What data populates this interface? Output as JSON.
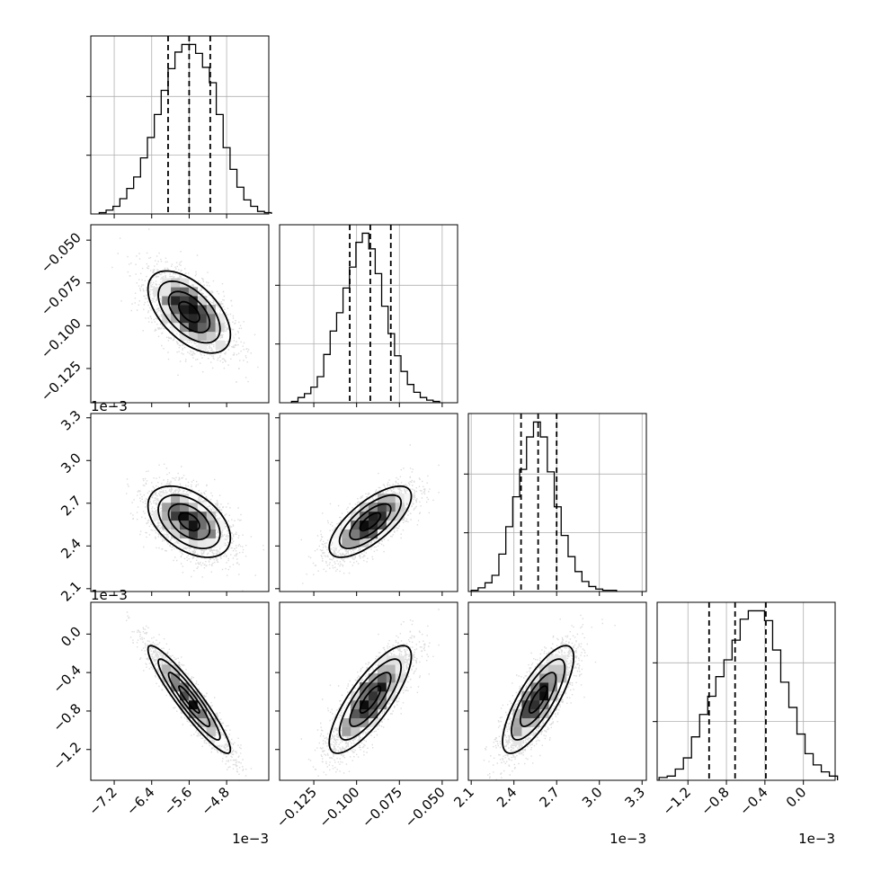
{
  "chart_data": {
    "type": "corner",
    "grid": true,
    "params": [
      {
        "ticks": [
          "−7.2",
          "−6.4",
          "−5.6",
          "−4.8"
        ],
        "tick_values": [
          -7.2,
          -6.4,
          -5.6,
          -4.8
        ],
        "range": [
          -7.7,
          -3.9
        ],
        "offset": "1e−3"
      },
      {
        "ticks": [
          "−0.125",
          "−0.100",
          "−0.075",
          "−0.050"
        ],
        "tick_values": [
          -0.125,
          -0.1,
          -0.075,
          -0.05
        ],
        "range": [
          -0.145,
          -0.041
        ],
        "offset": ""
      },
      {
        "ticks": [
          "2.1",
          "2.4",
          "2.7",
          "3.0",
          "3.3"
        ],
        "tick_values": [
          2.1,
          2.4,
          2.7,
          3.0,
          3.3
        ],
        "range": [
          2.08,
          3.33
        ],
        "offset": "1e−3"
      },
      {
        "ticks": [
          "−1.2",
          "−0.8",
          "−0.4",
          "0.0"
        ],
        "tick_values": [
          -1.2,
          -0.8,
          -0.4,
          0.0
        ],
        "range": [
          -1.52,
          0.33
        ],
        "offset": "1e−3"
      }
    ],
    "quantiles": [
      [
        -6.05,
        -5.6,
        -5.15
      ],
      [
        -0.104,
        -0.092,
        -0.08
      ],
      [
        2.45,
        2.57,
        2.7
      ],
      [
        -0.98,
        -0.71,
        -0.39
      ]
    ],
    "histograms": [
      {
        "bin_edges_start": -7.52,
        "bin_width": 0.147,
        "counts": [
          1,
          3,
          6,
          12,
          20,
          29,
          44,
          60,
          78,
          97,
          114,
          127,
          133,
          133,
          126,
          115,
          103,
          78,
          52,
          35,
          21,
          11,
          6,
          2,
          1
        ]
      },
      {
        "bin_edges_start": -0.138,
        "bin_width": 0.00376,
        "counts": [
          1,
          4,
          7,
          12,
          20,
          37,
          55,
          69,
          88,
          104,
          123,
          130,
          118,
          99,
          74,
          53,
          36,
          24,
          14,
          8,
          4,
          2,
          1
        ]
      },
      {
        "bin_edges_start": 2.1,
        "bin_width": 0.0486,
        "counts": [
          1,
          3,
          7,
          13,
          30,
          52,
          76,
          98,
          124,
          136,
          124,
          96,
          68,
          45,
          28,
          16,
          8,
          4,
          2,
          1,
          1
        ]
      },
      {
        "bin_edges_start": -1.5,
        "bin_width": 0.0843,
        "counts": [
          2,
          3,
          8,
          16,
          31,
          47,
          60,
          74,
          86,
          100,
          115,
          121,
          121,
          114,
          93,
          70,
          52,
          33,
          19,
          11,
          6,
          3
        ]
      }
    ],
    "pairs": [
      {
        "row": 1,
        "col": 0,
        "mean": [
          -5.6,
          -0.092
        ],
        "sd": [
          0.44,
          0.012
        ],
        "corr": -0.55
      },
      {
        "row": 2,
        "col": 0,
        "mean": [
          -5.6,
          2.57
        ],
        "sd": [
          0.44,
          0.125
        ],
        "corr": -0.45
      },
      {
        "row": 2,
        "col": 1,
        "mean": [
          -0.092,
          2.57
        ],
        "sd": [
          0.012,
          0.125
        ],
        "corr": 0.72
      },
      {
        "row": 3,
        "col": 0,
        "mean": [
          -5.6,
          -0.68
        ],
        "sd": [
          0.44,
          0.28
        ],
        "corr": -0.93
      },
      {
        "row": 3,
        "col": 1,
        "mean": [
          -0.092,
          -0.68
        ],
        "sd": [
          0.012,
          0.28
        ],
        "corr": 0.8
      },
      {
        "row": 3,
        "col": 2,
        "mean": [
          2.57,
          -0.68
        ],
        "sd": [
          0.125,
          0.28
        ],
        "corr": 0.78
      }
    ]
  }
}
